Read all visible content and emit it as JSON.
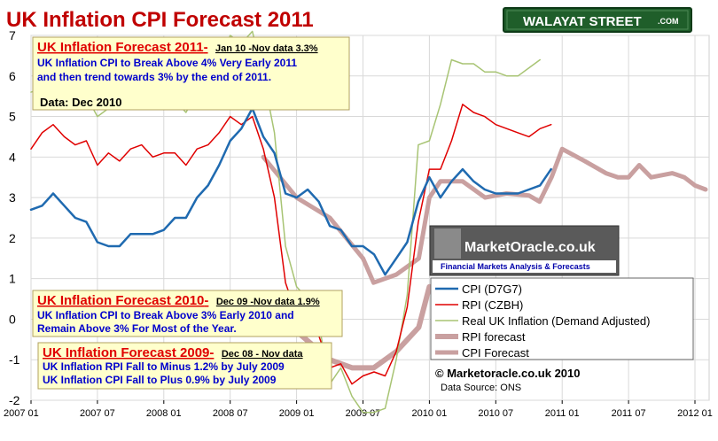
{
  "chart_data": {
    "type": "line",
    "title": "UK Inflation CPI Forecast 2011",
    "ylim": [
      -2,
      7
    ],
    "yticks": [
      "-2",
      "-1",
      "0",
      "1",
      "2",
      "3",
      "4",
      "5",
      "6",
      "7"
    ],
    "xticks": [
      "2007 01",
      "2007 07",
      "2008 01",
      "2008 07",
      "2009 01",
      "2009 07",
      "2010 01",
      "2010 07",
      "2011 01",
      "2011 07",
      "2012 01"
    ],
    "x_start": "2007 01",
    "x_end": "2012 01",
    "grid": true,
    "legend_position": "lower-right",
    "series": [
      {
        "name": "CPI (D7G7)",
        "color": "#1f6ab0",
        "width": 2.5,
        "values": [
          2.7,
          2.8,
          3.1,
          2.8,
          2.5,
          2.4,
          1.9,
          1.8,
          1.8,
          2.1,
          2.1,
          2.1,
          2.2,
          2.5,
          2.5,
          3.0,
          3.3,
          3.8,
          4.4,
          4.7,
          5.2,
          4.5,
          4.1,
          3.1,
          3.0,
          3.2,
          2.9,
          2.3,
          2.2,
          1.8,
          1.8,
          1.6,
          1.1,
          1.5,
          1.9,
          2.9,
          3.5,
          3.0,
          3.4,
          3.7,
          3.4,
          3.2,
          3.1,
          3.1,
          3.1,
          3.2,
          3.3,
          3.7
        ]
      },
      {
        "name": "RPI (CZBH)",
        "color": "#e00000",
        "width": 1.5,
        "values": [
          4.2,
          4.6,
          4.8,
          4.5,
          4.3,
          4.4,
          3.8,
          4.1,
          3.9,
          4.2,
          4.3,
          4.0,
          4.1,
          4.1,
          3.8,
          4.2,
          4.3,
          4.6,
          5.0,
          4.8,
          5.0,
          4.2,
          3.0,
          0.9,
          0.1,
          0.0,
          -0.4,
          -1.2,
          -1.1,
          -1.6,
          -1.4,
          -1.3,
          -1.4,
          -0.8,
          0.3,
          2.4,
          3.7,
          3.7,
          4.4,
          5.3,
          5.1,
          5.0,
          4.8,
          4.7,
          4.6,
          4.5,
          4.7,
          4.8
        ]
      },
      {
        "name": "Real UK Inflation (Demand Adjusted)",
        "color": "#a8c474",
        "width": 1.5,
        "values": [
          5.6,
          5.7,
          5.9,
          5.4,
          5.5,
          5.5,
          5.0,
          5.2,
          5.4,
          5.2,
          5.3,
          5.3,
          5.4,
          5.4,
          5.1,
          5.6,
          5.8,
          6.3,
          7.0,
          6.8,
          7.1,
          6.0,
          4.6,
          1.8,
          0.8,
          0.5,
          -0.1,
          -1.6,
          -1.2,
          -1.9,
          -2.3,
          -2.3,
          -2.2,
          -1.0,
          0.6,
          4.3,
          4.4,
          5.3,
          6.4,
          6.3,
          6.3,
          6.1,
          6.1,
          6.0,
          6.0,
          6.2,
          6.4
        ]
      },
      {
        "name": "RPI forecast",
        "color": "#c9a0a0",
        "width": 6,
        "points": [
          [
            2009.0,
            -0.3
          ],
          [
            2009.25,
            -1.0
          ],
          [
            2009.42,
            -1.2
          ],
          [
            2009.58,
            -1.2
          ],
          [
            2009.75,
            -0.8
          ],
          [
            2009.92,
            -0.2
          ],
          [
            2010.0,
            0.8
          ]
        ]
      },
      {
        "name": "CPI Forecast",
        "color": "#c9a0a0",
        "width": 5,
        "points": [
          [
            2008.75,
            4.0
          ],
          [
            2009.0,
            3.0
          ],
          [
            2009.25,
            2.5
          ],
          [
            2009.5,
            1.5
          ],
          [
            2009.58,
            0.9
          ],
          [
            2009.75,
            1.1
          ],
          [
            2009.92,
            1.5
          ],
          [
            2010.0,
            3.0
          ],
          [
            2010.083,
            3.4
          ],
          [
            2010.25,
            3.4
          ],
          [
            2010.42,
            3.0
          ],
          [
            2010.58,
            3.1
          ],
          [
            2010.75,
            3.05
          ],
          [
            2010.83,
            2.9
          ],
          [
            2010.92,
            3.5
          ],
          [
            2011.0,
            4.2
          ],
          [
            2011.17,
            3.9
          ],
          [
            2011.33,
            3.6
          ],
          [
            2011.42,
            3.5
          ],
          [
            2011.5,
            3.5
          ],
          [
            2011.58,
            3.8
          ],
          [
            2011.67,
            3.5
          ],
          [
            2011.83,
            3.6
          ],
          [
            2011.92,
            3.5
          ],
          [
            2012.0,
            3.3
          ],
          [
            2012.08,
            3.2
          ]
        ]
      }
    ]
  },
  "brand": {
    "name": "WALAYAT STREET",
    "suffix": ".COM"
  },
  "notes": {
    "forecast_2011": {
      "head": "UK Inflation Forecast 2011",
      "dash": "-",
      "date": "Jan 10 -Nov data  3.3%",
      "line1": "UK Inflation CPI to Break Above 4% Very Early 2011",
      "line2": "and then trend towards 3% by the end of 2011.",
      "data_label": "Data:  Dec 2010"
    },
    "forecast_2010": {
      "head": "UK Inflation Forecast 2010",
      "dash": "-",
      "date": "Dec 09 -Nov data 1.9%",
      "line1": "UK Inflation CPI to Break Above 3% Early 2010 and",
      "line2": "Remain Above 3% For Most of the Year."
    },
    "forecast_2009": {
      "head": "UK Inflation Forecast 2009",
      "dash": "-",
      "date": "Dec 08 - Nov data",
      "line1": "UK Inflation RPI Fall to  Minus 1.2% by July 2009",
      "line2": "UK Inflation CPI Fall to Plus 0.9% by July 2009"
    }
  },
  "market_oracle": {
    "title": "MarketOracle.co.uk",
    "subtitle": "Financial Markets Analysis & Forecasts"
  },
  "credit": {
    "copyright": "© Marketoracle.co.uk 2010",
    "source": "Data Source: ONS"
  }
}
